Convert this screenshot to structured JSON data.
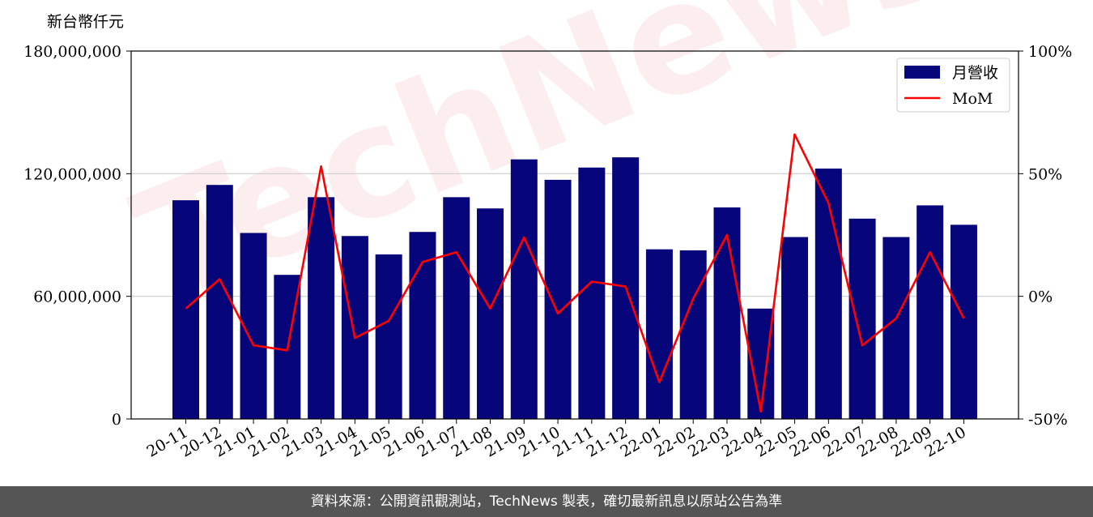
{
  "footer_text": "資料來源：公開資訊觀測站，TechNews 製表，確切最新訊息以原站公告為準",
  "watermark_text": "TechNews",
  "colors": {
    "bar": "#06057a",
    "line": "#ff0000",
    "grid": "#cccccc",
    "footer_bg": "#555555"
  },
  "chart_data": {
    "type": "bar",
    "unit_label": "新台幣仟元",
    "categories": [
      "20-11",
      "20-12",
      "21-01",
      "21-02",
      "21-03",
      "21-04",
      "21-05",
      "21-06",
      "21-07",
      "21-08",
      "21-09",
      "21-10",
      "21-11",
      "21-12",
      "22-01",
      "22-02",
      "22-03",
      "22-04",
      "22-05",
      "22-06",
      "22-07",
      "22-08",
      "22-09",
      "22-10"
    ],
    "series": [
      {
        "name": "月營收",
        "type": "bar",
        "axis": "left",
        "values": [
          107000000,
          114500000,
          91000000,
          70500000,
          108500000,
          89500000,
          80500000,
          91500000,
          108500000,
          103000000,
          127000000,
          117000000,
          123000000,
          128000000,
          83000000,
          82500000,
          103500000,
          54000000,
          89000000,
          122500000,
          98000000,
          89000000,
          104500000,
          95000000
        ]
      },
      {
        "name": "MoM",
        "type": "line",
        "axis": "right",
        "values": [
          -5,
          7,
          -20,
          -22,
          53,
          -17,
          -10,
          14,
          18,
          -5,
          24,
          -7,
          6,
          4,
          -35,
          -1,
          25,
          -47,
          66,
          38,
          -20,
          -9,
          18,
          -9
        ]
      }
    ],
    "yticks_left": [
      "0",
      "60,000,000",
      "120,000,000",
      "180,000,000"
    ],
    "ylim_left": [
      0,
      180000000
    ],
    "yticks_right": [
      "-50%",
      "0%",
      "50%",
      "100%"
    ],
    "ylim_right": [
      -50,
      100
    ],
    "grid": true,
    "legend_position": "top-right"
  }
}
